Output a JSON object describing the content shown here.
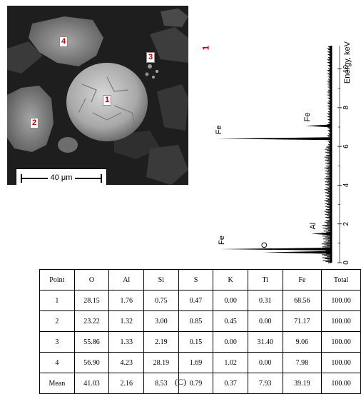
{
  "sem_image": {
    "scale_bar_label": "40 μm",
    "markers": [
      {
        "label": "1"
      },
      {
        "label": "2"
      },
      {
        "label": "3"
      },
      {
        "label": "4"
      }
    ]
  },
  "spectrum": {
    "point_label": "1",
    "axis_label": "Energy, keV",
    "ticks": [
      "0",
      "2",
      "4",
      "6",
      "8",
      "10"
    ],
    "peaks": [
      {
        "element": "Fe",
        "energy_kev": 0.7
      },
      {
        "element": "O",
        "energy_kev": 0.53
      },
      {
        "element": "Al",
        "energy_kev": 1.49
      },
      {
        "element": "Fe",
        "energy_kev": 6.4
      },
      {
        "element": "Fe",
        "energy_kev": 7.06
      }
    ]
  },
  "table": {
    "headers": [
      "Point",
      "O",
      "Al",
      "Si",
      "S",
      "K",
      "Ti",
      "Fe",
      "Total"
    ],
    "rows": [
      [
        "1",
        "28.15",
        "1.76",
        "0.75",
        "0.47",
        "0.00",
        "0.31",
        "68.56",
        "100.00"
      ],
      [
        "2",
        "23.22",
        "1.32",
        "3.00",
        "0.85",
        "0.45",
        "0.00",
        "71.17",
        "100.00"
      ],
      [
        "3",
        "55.86",
        "1.33",
        "2.19",
        "0.15",
        "0.00",
        "31.40",
        "9.06",
        "100.00"
      ],
      [
        "4",
        "56.90",
        "4.23",
        "28.19",
        "1.69",
        "1.02",
        "0.00",
        "7.98",
        "100.00"
      ],
      [
        "Mean",
        "41.03",
        "2.16",
        "8.53",
        "0.79",
        "0.37",
        "7.93",
        "39.19",
        "100.00"
      ]
    ]
  },
  "caption": "(C)",
  "colors": {
    "marker_text": "#d40000",
    "spectrum_title": "#cc0000",
    "sem_background": "#222222"
  }
}
